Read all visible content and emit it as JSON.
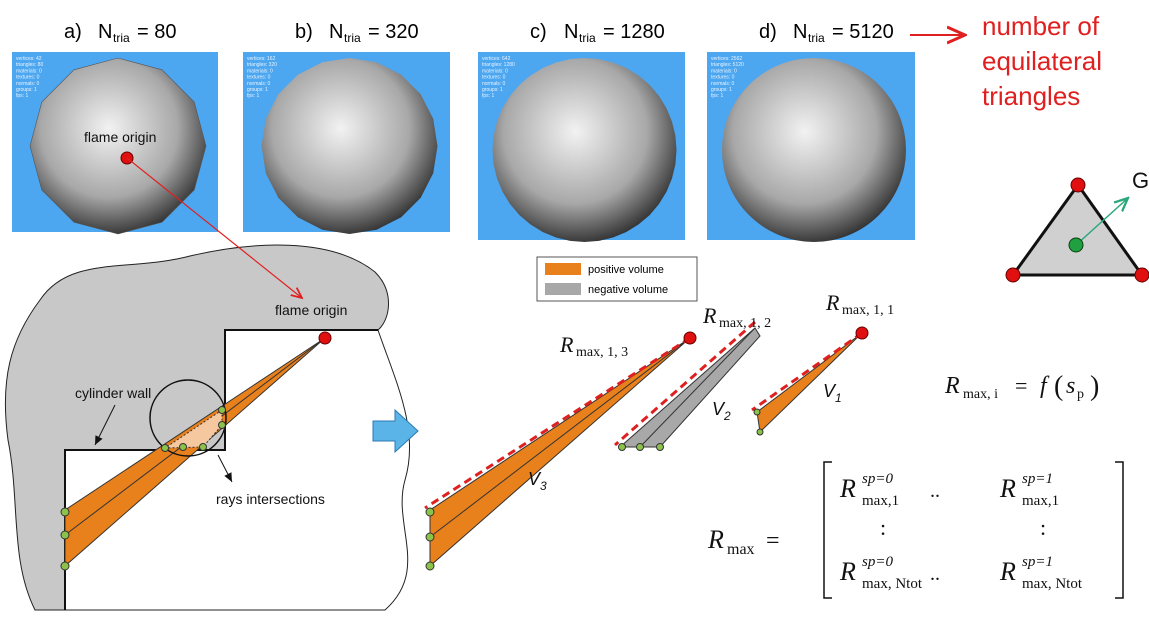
{
  "panels": [
    {
      "letter": "a)",
      "symbol": "N",
      "subscript": "tria",
      "value": "= 80",
      "stats": [
        "vertices: 42",
        "triangles: 80",
        "materials: 0",
        "textures: 0",
        "normals: 0",
        "groups: 1",
        "fps: 1"
      ]
    },
    {
      "letter": "b)",
      "symbol": "N",
      "subscript": "tria",
      "value": "= 320",
      "stats": [
        "vertices: 162",
        "triangles: 320",
        "materials: 0",
        "textures: 0",
        "normals: 0",
        "groups: 1",
        "fps: 1"
      ]
    },
    {
      "letter": "c)",
      "symbol": "N",
      "subscript": "tria",
      "value": "= 1280",
      "stats": [
        "vertices: 642",
        "triangles: 1280",
        "materials: 0",
        "textures: 0",
        "normals: 0",
        "groups: 1",
        "fps: 1"
      ]
    },
    {
      "letter": "d)",
      "symbol": "N",
      "subscript": "tria",
      "value": "= 5120",
      "stats": [
        "vertices: 2562",
        "triangles: 5120",
        "materials: 0",
        "textures: 0",
        "normals: 0",
        "groups: 1",
        "fps: 1"
      ]
    }
  ],
  "annotation": [
    "number of",
    "equilateral",
    "triangles"
  ],
  "triangle_label": "G",
  "sphere_label": "flame origin",
  "cylinder": {
    "flame_origin": "flame origin",
    "wall": "cylinder wall",
    "intersections": "rays intersections"
  },
  "legend": [
    "positive volume",
    "negative volume"
  ],
  "rays": [
    {
      "symbol": "R",
      "subscript": "max, 1, 3"
    },
    {
      "symbol": "R",
      "subscript": "max, 1, 2"
    },
    {
      "symbol": "R",
      "subscript": "max, 1, 1"
    }
  ],
  "volumes": [
    {
      "symbol": "V",
      "subscript": "3"
    },
    {
      "symbol": "V",
      "subscript": "2"
    },
    {
      "symbol": "V",
      "subscript": "1"
    }
  ],
  "formula": {
    "lhs": "R",
    "lhs_sub": "max, i",
    "eq": "=",
    "rhs": "f",
    "open": "(",
    "arg": "s",
    "arg_sub": "p",
    "close": ")"
  },
  "matrix": {
    "lhs": "R",
    "lhs_sub": "max",
    "eq": "=",
    "rows": [
      {
        "left": {
          "symbol": "R",
          "sup": "sp=0",
          "sub": "max,1"
        },
        "middle": "..",
        "right": {
          "symbol": "R",
          "sup": "sp=1",
          "sub": "max,1"
        }
      },
      {
        "left": ":",
        "right": ":"
      },
      {
        "left": {
          "symbol": "R",
          "sup": "sp=0",
          "sub": "max, Ntot"
        },
        "middle": "..",
        "right": {
          "symbol": "R",
          "sup": "sp=1",
          "sub": "max, Ntot"
        }
      }
    ]
  }
}
